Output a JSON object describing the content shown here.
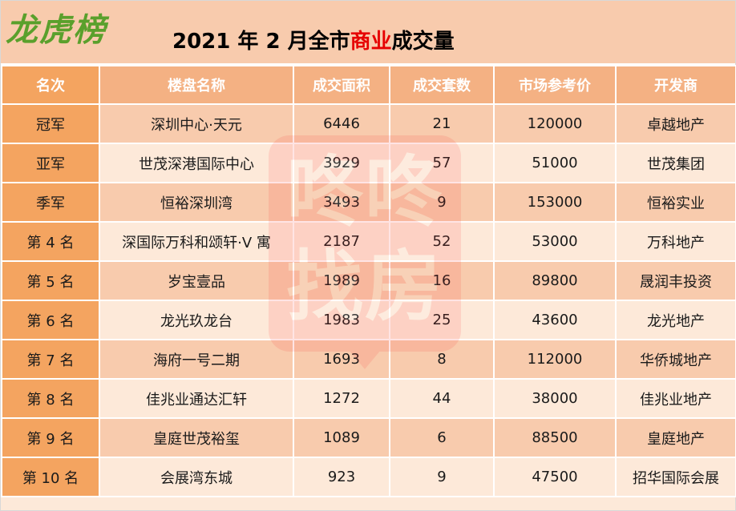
{
  "brand": {
    "logo_text": "龙虎榜"
  },
  "title": {
    "pre": "2021 年 2 月全市",
    "highlight": "商业",
    "post": "成交量"
  },
  "columns": [
    "名次",
    "楼盘名称",
    "成交面积",
    "成交套数",
    "市场参考价",
    "开发商"
  ],
  "rows": [
    [
      "冠军",
      "深圳中心·天元",
      "6446",
      "21",
      "120000",
      "卓越地产"
    ],
    [
      "亚军",
      "世茂深港国际中心",
      "3929",
      "57",
      "51000",
      "世茂集团"
    ],
    [
      "季军",
      "恒裕深圳湾",
      "3493",
      "9",
      "153000",
      "恒裕实业"
    ],
    [
      "第 4 名",
      "深国际万科和颂轩·V 寓",
      "2187",
      "52",
      "53000",
      "万科地产"
    ],
    [
      "第 5 名",
      "岁宝壹品",
      "1989",
      "16",
      "89800",
      "晟润丰投资"
    ],
    [
      "第 6 名",
      "龙光玖龙台",
      "1983",
      "25",
      "43600",
      "龙光地产"
    ],
    [
      "第 7 名",
      "海府一号二期",
      "1693",
      "8",
      "112000",
      "华侨城地产"
    ],
    [
      "第 8 名",
      "佳兆业通达汇轩",
      "1272",
      "44",
      "38000",
      "佳兆业地产"
    ],
    [
      "第 9 名",
      "皇庭世茂裕玺",
      "1089",
      "6",
      "88500",
      "皇庭地产"
    ],
    [
      "第 10 名",
      "会展湾东城",
      "923",
      "9",
      "47500",
      "招华国际会展"
    ]
  ],
  "watermark": {
    "line1": "咚咚",
    "line2": "找房"
  },
  "colors": {
    "header_bg": "#f8cbad",
    "column_header_bg": "#f4b183",
    "rank_column_bg": "#f4a460",
    "row_dark": "#f8cbad",
    "row_light": "#fde9d9",
    "logo": "#5aa02c",
    "title_highlight": "#e60000"
  }
}
